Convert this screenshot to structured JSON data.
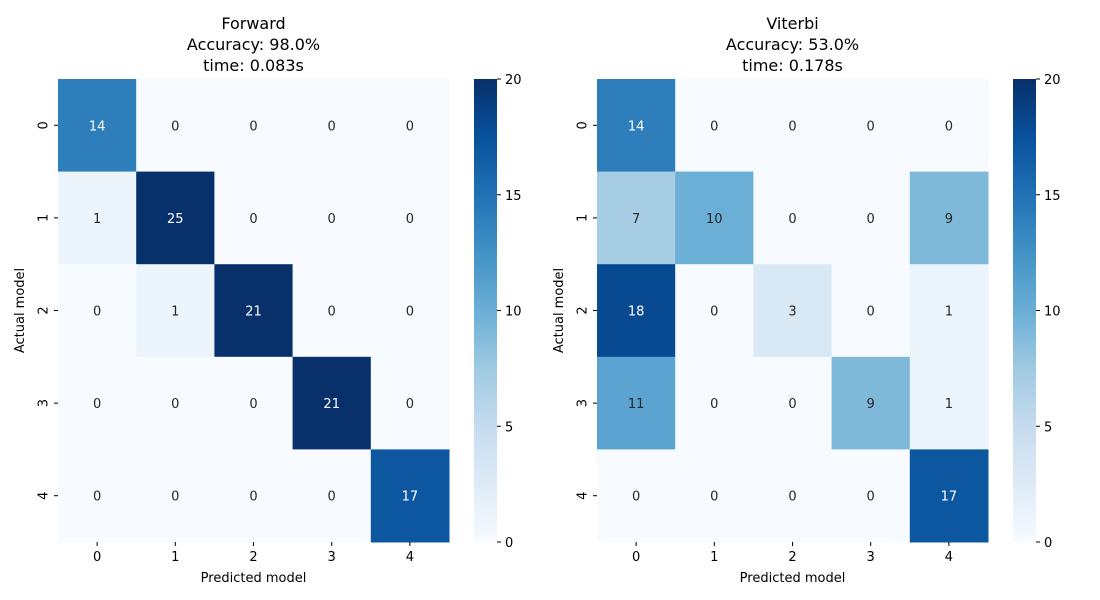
{
  "chart_data": [
    {
      "type": "heatmap",
      "title_lines": [
        "Forward",
        "Accuracy: 98.0%",
        "time: 0.083s"
      ],
      "xlabel": "Predicted model",
      "ylabel": "Actual model",
      "x_ticks": [
        "0",
        "1",
        "2",
        "3",
        "4"
      ],
      "y_ticks": [
        "0",
        "1",
        "2",
        "3",
        "4"
      ],
      "values": [
        [
          14,
          0,
          0,
          0,
          0
        ],
        [
          1,
          25,
          0,
          0,
          0
        ],
        [
          0,
          1,
          21,
          0,
          0
        ],
        [
          0,
          0,
          0,
          21,
          0
        ],
        [
          0,
          0,
          0,
          0,
          17
        ]
      ],
      "colormap": "Blues",
      "vmin": 0,
      "vmax": 20,
      "colorbar_ticks": [
        "0",
        "5",
        "10",
        "15",
        "20"
      ]
    },
    {
      "type": "heatmap",
      "title_lines": [
        "Viterbi",
        "Accuracy: 53.0%",
        "time: 0.178s"
      ],
      "xlabel": "Predicted model",
      "ylabel": "Actual model",
      "x_ticks": [
        "0",
        "1",
        "2",
        "3",
        "4"
      ],
      "y_ticks": [
        "0",
        "1",
        "2",
        "3",
        "4"
      ],
      "values": [
        [
          14,
          0,
          0,
          0,
          0
        ],
        [
          7,
          10,
          0,
          0,
          9
        ],
        [
          18,
          0,
          3,
          0,
          1
        ],
        [
          11,
          0,
          0,
          9,
          1
        ],
        [
          0,
          0,
          0,
          0,
          17
        ]
      ],
      "colormap": "Blues",
      "vmin": 0,
      "vmax": 20,
      "colorbar_ticks": [
        "0",
        "5",
        "10",
        "15",
        "20"
      ]
    }
  ]
}
